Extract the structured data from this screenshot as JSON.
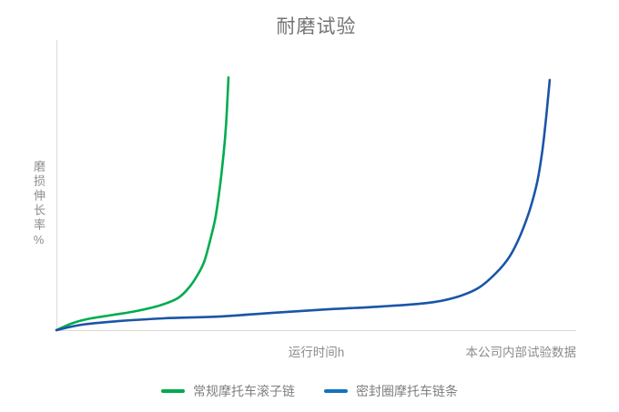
{
  "title": "耐磨试验",
  "axes": {
    "y_label": "磨损伸长率%",
    "x_label": "运行时间h",
    "x_note": "本公司内部试验数据",
    "axis_color": "#d9d9d9"
  },
  "legend": {
    "items": [
      {
        "label": "常规摩托车滚子链",
        "color": "#00a94f"
      },
      {
        "label": "密封圈摩托车链条",
        "color": "#1273c0"
      }
    ]
  },
  "chart_data": {
    "type": "line",
    "title": "耐磨试验",
    "xlabel": "运行时间h",
    "ylabel": "磨损伸长率%",
    "annotation": "本公司内部试验数据",
    "grid": false,
    "axis_ticks": "none",
    "legend_position": "bottom",
    "x_units": "relative running time (percent of axis, no numeric ticks shown)",
    "y_units": "relative wear elongation (percent of axis, no numeric ticks shown)",
    "xlim": [
      0,
      100
    ],
    "ylim": [
      0,
      100
    ],
    "series": [
      {
        "name": "常规摩托车滚子链",
        "color": "#00ac4f",
        "points": [
          [
            0,
            0
          ],
          [
            3.2,
            2.5
          ],
          [
            6.7,
            4.1
          ],
          [
            11.0,
            5.3
          ],
          [
            15.4,
            6.6
          ],
          [
            19.8,
            8.5
          ],
          [
            23.3,
            11.0
          ],
          [
            25.4,
            14.5
          ],
          [
            27.1,
            18.9
          ],
          [
            28.4,
            23.6
          ],
          [
            29.4,
            29.9
          ],
          [
            30.5,
            38.1
          ],
          [
            31.3,
            47.5
          ],
          [
            32.0,
            58.2
          ],
          [
            32.6,
            70.1
          ],
          [
            32.9,
            80.2
          ],
          [
            33.1,
            87.4
          ]
        ]
      },
      {
        "name": "密封圈摩托车链条",
        "color": "#1a55a8",
        "points": [
          [
            0,
            0
          ],
          [
            4.9,
            1.9
          ],
          [
            11.9,
            3.1
          ],
          [
            20.7,
            4.1
          ],
          [
            31.2,
            4.7
          ],
          [
            41.7,
            6.0
          ],
          [
            52.2,
            7.2
          ],
          [
            62.7,
            8.2
          ],
          [
            71.4,
            9.4
          ],
          [
            76.7,
            11.3
          ],
          [
            81.1,
            14.5
          ],
          [
            84.6,
            19.8
          ],
          [
            87.2,
            25.5
          ],
          [
            89.3,
            33.0
          ],
          [
            91.1,
            41.8
          ],
          [
            92.5,
            51.3
          ],
          [
            93.5,
            62.3
          ],
          [
            94.2,
            73.3
          ],
          [
            94.9,
            86.5
          ]
        ]
      }
    ]
  }
}
